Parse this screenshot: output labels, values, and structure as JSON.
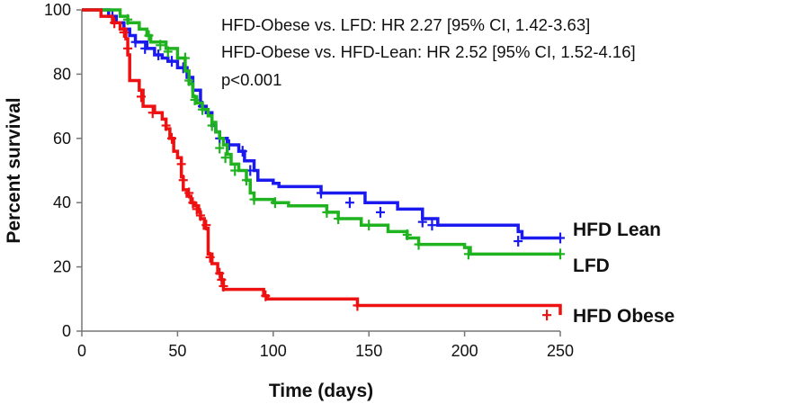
{
  "chart_data": {
    "type": "line",
    "subtype": "kaplan-meier step",
    "xlabel": "Time (days)",
    "ylabel": "Percent survival",
    "xlim": [
      0,
      250
    ],
    "ylim": [
      0,
      100
    ],
    "xticks": [
      0,
      50,
      100,
      150,
      200,
      250
    ],
    "yticks": [
      0,
      20,
      40,
      60,
      80,
      100
    ],
    "grid": false,
    "annotations": [
      "HFD-Obese vs. LFD: HR 2.27 [95% CI, 1.42-3.63]",
      "HFD-Obese vs. HFD-Lean: HR 2.52 [95% CI, 1.52-4.16]",
      "p<0.001"
    ],
    "series": [
      {
        "name": "HFD Lean",
        "color": "#1a1aee",
        "steps": [
          [
            0,
            100
          ],
          [
            14,
            98
          ],
          [
            18,
            96
          ],
          [
            22,
            94
          ],
          [
            25,
            92
          ],
          [
            28,
            90
          ],
          [
            34,
            88
          ],
          [
            38,
            86
          ],
          [
            42,
            85
          ],
          [
            45,
            84
          ],
          [
            50,
            82
          ],
          [
            55,
            79
          ],
          [
            58,
            75
          ],
          [
            62,
            70
          ],
          [
            65,
            68
          ],
          [
            68,
            64
          ],
          [
            70,
            62
          ],
          [
            72,
            60
          ],
          [
            76,
            58
          ],
          [
            82,
            56
          ],
          [
            85,
            53
          ],
          [
            90,
            50
          ],
          [
            92,
            47
          ],
          [
            100,
            46
          ],
          [
            103,
            45
          ],
          [
            125,
            43
          ],
          [
            148,
            40
          ],
          [
            165,
            38
          ],
          [
            178,
            35
          ],
          [
            186,
            33
          ],
          [
            228,
            31
          ],
          [
            230,
            29
          ],
          [
            250,
            29
          ]
        ],
        "censored": [
          [
            16,
            98
          ],
          [
            28,
            90
          ],
          [
            33,
            88
          ],
          [
            40,
            86
          ],
          [
            47,
            84
          ],
          [
            53,
            82
          ],
          [
            63,
            70
          ],
          [
            72,
            60
          ],
          [
            77,
            58
          ],
          [
            84,
            56
          ],
          [
            88,
            50
          ],
          [
            125,
            43
          ],
          [
            140,
            40
          ],
          [
            156,
            37
          ],
          [
            178,
            34
          ],
          [
            183,
            33
          ],
          [
            228,
            28
          ],
          [
            250,
            29
          ]
        ]
      },
      {
        "name": "LFD",
        "color": "#1fb31f",
        "steps": [
          [
            0,
            100
          ],
          [
            20,
            98
          ],
          [
            24,
            96
          ],
          [
            30,
            94
          ],
          [
            34,
            92
          ],
          [
            36,
            90
          ],
          [
            44,
            88
          ],
          [
            50,
            85
          ],
          [
            54,
            81
          ],
          [
            56,
            77
          ],
          [
            58,
            73
          ],
          [
            60,
            71
          ],
          [
            63,
            69
          ],
          [
            66,
            67
          ],
          [
            68,
            65
          ],
          [
            70,
            62
          ],
          [
            72,
            60
          ],
          [
            74,
            58
          ],
          [
            76,
            55
          ],
          [
            78,
            52
          ],
          [
            82,
            50
          ],
          [
            86,
            47
          ],
          [
            88,
            43
          ],
          [
            90,
            41
          ],
          [
            100,
            40
          ],
          [
            108,
            39
          ],
          [
            128,
            37
          ],
          [
            134,
            35
          ],
          [
            146,
            33
          ],
          [
            160,
            31
          ],
          [
            170,
            29
          ],
          [
            176,
            27
          ],
          [
            200,
            26
          ],
          [
            203,
            24
          ],
          [
            250,
            24
          ]
        ],
        "censored": [
          [
            24,
            97
          ],
          [
            35,
            92
          ],
          [
            41,
            89
          ],
          [
            45,
            87
          ],
          [
            54,
            85
          ],
          [
            56,
            78
          ],
          [
            59,
            72
          ],
          [
            63,
            69
          ],
          [
            68,
            64
          ],
          [
            72,
            57
          ],
          [
            75,
            54
          ],
          [
            80,
            50
          ],
          [
            86,
            47
          ],
          [
            90,
            41
          ],
          [
            101,
            40
          ],
          [
            128,
            37
          ],
          [
            134,
            35
          ],
          [
            150,
            33
          ],
          [
            170,
            30
          ],
          [
            176,
            27
          ],
          [
            202,
            24
          ],
          [
            250,
            24
          ]
        ]
      },
      {
        "name": "HFD Obese",
        "color": "#ee1111",
        "steps": [
          [
            0,
            100
          ],
          [
            10,
            98
          ],
          [
            16,
            96
          ],
          [
            20,
            94
          ],
          [
            23,
            91
          ],
          [
            24,
            86
          ],
          [
            25,
            78
          ],
          [
            30,
            75
          ],
          [
            32,
            70
          ],
          [
            38,
            68
          ],
          [
            42,
            66
          ],
          [
            44,
            63
          ],
          [
            46,
            60
          ],
          [
            48,
            56
          ],
          [
            50,
            54
          ],
          [
            52,
            48
          ],
          [
            53,
            44
          ],
          [
            55,
            42
          ],
          [
            57,
            40
          ],
          [
            59,
            39
          ],
          [
            61,
            37
          ],
          [
            62,
            35
          ],
          [
            64,
            32
          ],
          [
            66,
            24
          ],
          [
            68,
            21
          ],
          [
            71,
            18
          ],
          [
            73,
            16
          ],
          [
            74,
            13
          ],
          [
            95,
            11
          ],
          [
            97,
            10
          ],
          [
            144,
            8
          ],
          [
            250,
            8
          ],
          [
            250,
            5
          ]
        ],
        "censored": [
          [
            17,
            96
          ],
          [
            22,
            93
          ],
          [
            24,
            88
          ],
          [
            31,
            73
          ],
          [
            37,
            68
          ],
          [
            44,
            64
          ],
          [
            47,
            60
          ],
          [
            52,
            52
          ],
          [
            53,
            47
          ],
          [
            56,
            43
          ],
          [
            58,
            40
          ],
          [
            60,
            38
          ],
          [
            62,
            36
          ],
          [
            65,
            33
          ],
          [
            67,
            23
          ],
          [
            72,
            18
          ],
          [
            73,
            16
          ],
          [
            74,
            14
          ],
          [
            96,
            11
          ],
          [
            144,
            8
          ],
          [
            243,
            5
          ]
        ]
      }
    ]
  }
}
